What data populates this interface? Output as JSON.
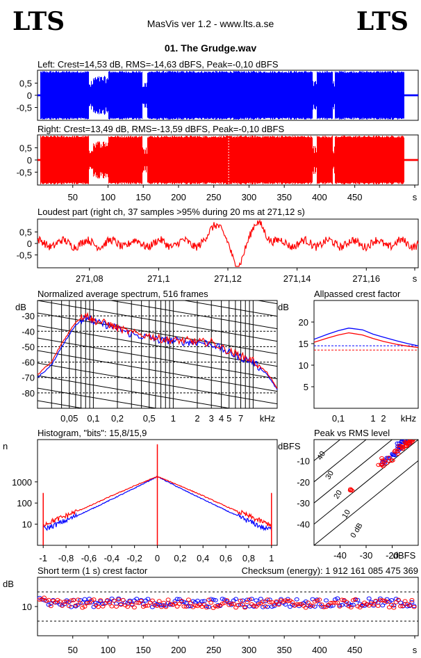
{
  "header": {
    "logo_left": "LTS",
    "logo_right": "LTS",
    "app_title": "MasVis ver 1.2 - www.lts.a.se",
    "file_title": "01. The Grudge.wav"
  },
  "colors": {
    "left": "#0000ff",
    "right": "#ff0000",
    "axis": "#000000"
  },
  "chart_data": [
    {
      "id": "left_wave",
      "type": "area",
      "title": "Left: Crest=14,53 dB, RMS=-14,63 dBFS, Peak=-0,10 dBFS",
      "yticks": [
        "0,5",
        "0",
        "-0,5"
      ],
      "ylim": [
        -1,
        1
      ],
      "xlim": [
        0,
        540
      ],
      "series": [
        {
          "name": "Left",
          "color": "#0000ff"
        }
      ],
      "quiet_gaps_s": [
        [
          72,
          78
        ],
        [
          148,
          155
        ],
        [
          390,
          396
        ],
        [
          418,
          421
        ]
      ]
    },
    {
      "id": "right_wave",
      "type": "area",
      "title": "Right: Crest=13,49 dB, RMS=-13,59 dBFS, Peak=-0,10 dBFS",
      "yticks": [
        "0,5",
        "0",
        "-0,5"
      ],
      "ylim": [
        -1,
        1
      ],
      "xlim": [
        0,
        540
      ],
      "xticks": [
        "50",
        "100",
        "150",
        "200",
        "250",
        "300",
        "350",
        "400",
        "450",
        "s"
      ],
      "series": [
        {
          "name": "Right",
          "color": "#ff0000"
        }
      ],
      "marker_s": 271.12
    },
    {
      "id": "loudest",
      "type": "line",
      "title": "Loudest part (right ch, 37 samples >95% during 20 ms at 271,12 s)",
      "yticks": [
        "0,5",
        "0",
        "-0,5"
      ],
      "xticks": [
        "271,08",
        "271,1",
        "271,12",
        "271,14",
        "271,16",
        "s"
      ],
      "xlim": [
        271.065,
        271.175
      ],
      "ylim": [
        -1,
        1
      ]
    },
    {
      "id": "spectrum",
      "type": "line",
      "title": "Normalized average spectrum, 516 frames",
      "ylabel": "dB",
      "yticks": [
        "-30",
        "-40",
        "-50",
        "-60",
        "-70",
        "-80"
      ],
      "xticks": [
        "0,05",
        "0,1",
        "0,2",
        "0,5",
        "1",
        "2",
        "3",
        "4",
        "5",
        "7",
        "kHz"
      ],
      "xlim": [
        0.02,
        20
      ],
      "ylim": [
        -90,
        -20
      ],
      "xscale": "log",
      "series": [
        {
          "name": "Left",
          "color": "#0000ff",
          "x": [
            0.02,
            0.03,
            0.04,
            0.06,
            0.08,
            0.1,
            0.15,
            0.2,
            0.3,
            0.5,
            0.7,
            1,
            1.5,
            2,
            3,
            5,
            7,
            10,
            15,
            20
          ],
          "y": [
            -70,
            -62,
            -50,
            -36,
            -30,
            -34,
            -36,
            -38,
            -42,
            -44,
            -46,
            -46,
            -47,
            -47,
            -48,
            -54,
            -57,
            -60,
            -68,
            -78
          ]
        },
        {
          "name": "Right",
          "color": "#ff0000",
          "x": [
            0.02,
            0.03,
            0.04,
            0.06,
            0.08,
            0.1,
            0.15,
            0.2,
            0.3,
            0.5,
            0.7,
            1,
            1.5,
            2,
            3,
            5,
            7,
            10,
            15,
            20
          ],
          "y": [
            -68,
            -60,
            -48,
            -34,
            -29,
            -33,
            -35,
            -38,
            -41,
            -43,
            -45,
            -46,
            -46,
            -47,
            -47,
            -53,
            -56,
            -59,
            -67,
            -77
          ]
        }
      ]
    },
    {
      "id": "allpass",
      "type": "line",
      "title": "Allpassed crest factor",
      "ylabel": "dB",
      "yticks": [
        "20",
        "15",
        "10",
        "5"
      ],
      "xticks": [
        "0,1",
        "1",
        "2",
        "kHz"
      ],
      "xlim": [
        0.02,
        20
      ],
      "ylim": [
        0,
        25
      ],
      "xscale": "log",
      "series": [
        {
          "name": "Left",
          "color": "#0000ff",
          "x": [
            0.02,
            0.05,
            0.1,
            0.2,
            0.5,
            1,
            2,
            5,
            10,
            20
          ],
          "y": [
            16,
            17.2,
            18,
            18.6,
            18.2,
            17.2,
            16.5,
            15.6,
            15.0,
            14.5
          ]
        },
        {
          "name": "Right",
          "color": "#ff0000",
          "x": [
            0.02,
            0.05,
            0.1,
            0.2,
            0.5,
            1,
            2,
            5,
            10,
            20
          ],
          "y": [
            15.3,
            16.3,
            17.0,
            17.5,
            17.0,
            16.2,
            15.5,
            14.8,
            14.4,
            14.1
          ]
        }
      ],
      "ref_lines": [
        {
          "color": "#0000ff",
          "y": 14.5
        },
        {
          "color": "#ff0000",
          "y": 13.5
        }
      ]
    },
    {
      "id": "histogram",
      "type": "line",
      "title": "Histogram, \"bits\": 15,8/15,9",
      "ylabel": "n",
      "yticks": [
        "1000",
        "100",
        "10"
      ],
      "xticks": [
        "-1",
        "-0,8",
        "-0,6",
        "-0,4",
        "-0,2",
        "0",
        "0,2",
        "0,4",
        "0,6",
        "0,8",
        "1"
      ],
      "xlim": [
        -1.05,
        1.05
      ],
      "ylim": [
        1,
        100000
      ],
      "yscale": "log",
      "series": [
        {
          "name": "Left",
          "color": "#0000ff",
          "x": [
            -1,
            -0.95,
            -0.8,
            -0.6,
            -0.4,
            -0.2,
            0,
            0.2,
            0.4,
            0.6,
            0.8,
            0.95,
            1
          ],
          "y": [
            6,
            7,
            15,
            45,
            150,
            500,
            1800,
            500,
            150,
            45,
            14,
            6,
            6
          ]
        },
        {
          "name": "Right",
          "color": "#ff0000",
          "x": [
            -1,
            -0.95,
            -0.8,
            -0.6,
            -0.4,
            -0.2,
            0,
            0.2,
            0.4,
            0.6,
            0.8,
            0.95,
            1
          ],
          "y": [
            10,
            12,
            25,
            70,
            220,
            650,
            1800,
            650,
            220,
            70,
            24,
            11,
            10
          ]
        }
      ],
      "spikes": [
        {
          "x": -1,
          "y": 300
        },
        {
          "x": 0,
          "y": 60000
        },
        {
          "x": 1,
          "y": 300
        }
      ]
    },
    {
      "id": "peak_rms",
      "type": "scatter",
      "title": "Peak vs RMS level",
      "ylabel": "dBFS",
      "xlabel": "dBFS",
      "yticks": [
        "-10",
        "-20",
        "-30",
        "-40"
      ],
      "xticks": [
        "-40",
        "-30",
        "-20"
      ],
      "xlim": [
        -50,
        -10
      ],
      "ylim": [
        -50,
        0
      ],
      "crest_lines": [
        "40",
        "30",
        "20",
        "10",
        "0 dB"
      ],
      "series": [
        {
          "name": "Left",
          "color": "#0000ff",
          "x": [
            -24,
            -22,
            -20,
            -18,
            -17,
            -16,
            -15,
            -14
          ],
          "y": [
            -11,
            -9,
            -7,
            -5,
            -3,
            -2,
            -1,
            -1
          ]
        },
        {
          "name": "Right",
          "color": "#ff0000",
          "x": [
            -36,
            -24,
            -23,
            -21,
            -19,
            -17,
            -16,
            -15,
            -14,
            -13,
            -12
          ],
          "y": [
            -23,
            -12,
            -10,
            -9,
            -6,
            -4,
            -3,
            -2,
            -1,
            -1,
            -1
          ]
        }
      ]
    },
    {
      "id": "crest_short",
      "type": "scatter",
      "title": "Short term (1 s) crest factor",
      "checksum": "Checksum (energy):  1 912 161 085 475 369",
      "ylabel": "dB",
      "yticks": [
        "10"
      ],
      "xticks": [
        "50",
        "100",
        "150",
        "200",
        "250",
        "300",
        "350",
        "400",
        "450",
        "s"
      ],
      "xlim": [
        0,
        540
      ],
      "ylim": [
        0,
        20
      ],
      "ref_lines": [
        15,
        5
      ],
      "series": [
        {
          "name": "Left",
          "color": "#0000ff",
          "mean": 11.3
        },
        {
          "name": "Right",
          "color": "#ff0000",
          "mean": 11.0
        }
      ]
    }
  ]
}
